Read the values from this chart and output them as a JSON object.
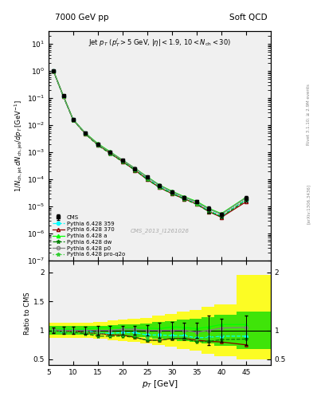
{
  "title_left": "7000 GeV pp",
  "title_right": "Soft QCD",
  "watermark": "CMS_2013_I1261026",
  "right_label1": "Rivet 3.1.10; ≥ 2.9M events",
  "right_label2": "[arXiv:1306.3436]",
  "background_color": "#f0f0f0",
  "pt_edges": [
    5,
    7,
    9,
    11,
    14,
    17,
    19,
    21,
    23.5,
    26,
    28.5,
    31,
    33.5,
    36,
    38.5,
    43,
    50
  ],
  "pt_centers": [
    6,
    8,
    10,
    12.5,
    15,
    17.5,
    20,
    22.5,
    25,
    27.5,
    30,
    32.5,
    35,
    37.5,
    40,
    45
  ],
  "cms_y": [
    1.0,
    0.12,
    0.016,
    0.005,
    0.002,
    0.001,
    0.0005,
    0.00025,
    0.00012,
    6e-05,
    3.5e-05,
    2.2e-05,
    1.5e-05,
    8e-06,
    5e-06,
    2e-05
  ],
  "cms_yerr": [
    0.05,
    0.008,
    0.001,
    0.0003,
    0.00015,
    8e-05,
    4e-05,
    2e-05,
    1e-05,
    8e-06,
    5e-06,
    3e-06,
    2e-06,
    2e-06,
    1e-06,
    5e-06
  ],
  "py359_y": [
    1.0,
    0.115,
    0.016,
    0.005,
    0.0019,
    0.00095,
    0.00048,
    0.00024,
    0.00011,
    5.5e-05,
    3.2e-05,
    2e-05,
    1.3e-05,
    7e-06,
    4.5e-06,
    1.8e-05
  ],
  "py370_y": [
    1.0,
    0.118,
    0.0158,
    0.0048,
    0.0019,
    0.00092,
    0.00046,
    0.00022,
    0.0001,
    5e-05,
    3e-05,
    1.9e-05,
    1.25e-05,
    6.5e-06,
    4e-06,
    1.5e-05
  ],
  "pya_y": [
    1.02,
    0.122,
    0.0162,
    0.0051,
    0.0021,
    0.00105,
    0.00052,
    0.00026,
    0.000125,
    6.2e-05,
    3.7e-05,
    2.3e-05,
    1.55e-05,
    8.5e-06,
    5.5e-06,
    2.2e-05
  ],
  "pydw_y": [
    1.0,
    0.116,
    0.0155,
    0.0047,
    0.0018,
    0.0009,
    0.00045,
    0.00022,
    0.0001,
    5e-05,
    3e-05,
    1.9e-05,
    1.2e-05,
    6.5e-06,
    4.2e-06,
    1.7e-05
  ],
  "pyp0_y": [
    1.01,
    0.12,
    0.016,
    0.005,
    0.002,
    0.001,
    0.00051,
    0.000255,
    0.00012,
    6e-05,
    3.5e-05,
    2.2e-05,
    1.45e-05,
    8e-06,
    5.2e-06,
    2.1e-05
  ],
  "pyproq2o_y": [
    1.0,
    0.117,
    0.0157,
    0.0048,
    0.0019,
    0.00093,
    0.000465,
    0.00023,
    0.000105,
    5.2e-05,
    3.1e-05,
    1.95e-05,
    1.28e-05,
    7e-06,
    4.6e-06,
    1.9e-05
  ],
  "ratio_py359": [
    1.0,
    0.96,
    1.0,
    1.0,
    0.95,
    0.95,
    0.96,
    0.96,
    0.92,
    0.92,
    0.91,
    0.91,
    0.87,
    0.88,
    0.9,
    0.9
  ],
  "ratio_py370": [
    1.0,
    0.98,
    0.99,
    0.96,
    0.95,
    0.92,
    0.92,
    0.88,
    0.83,
    0.83,
    0.86,
    0.86,
    0.83,
    0.81,
    0.8,
    0.75
  ],
  "ratio_pya": [
    1.02,
    1.02,
    1.01,
    1.02,
    1.05,
    1.05,
    1.04,
    1.04,
    1.04,
    1.03,
    1.06,
    1.05,
    1.03,
    1.06,
    1.1,
    1.1
  ],
  "ratio_pydw": [
    1.0,
    0.97,
    0.97,
    0.94,
    0.9,
    0.9,
    0.9,
    0.88,
    0.83,
    0.83,
    0.86,
    0.86,
    0.8,
    0.81,
    0.84,
    0.85
  ],
  "ratio_pyp0": [
    1.01,
    1.0,
    1.0,
    1.0,
    1.0,
    1.0,
    1.02,
    1.02,
    1.0,
    1.0,
    1.0,
    1.0,
    0.97,
    1.0,
    1.04,
    1.05
  ],
  "ratio_pyproq2o": [
    1.0,
    0.975,
    0.98,
    0.96,
    0.95,
    0.93,
    0.93,
    0.92,
    0.875,
    0.87,
    0.89,
    0.89,
    0.85,
    0.875,
    0.92,
    0.95
  ],
  "band_yellow_lo": [
    0.87,
    0.87,
    0.87,
    0.87,
    0.85,
    0.83,
    0.82,
    0.8,
    0.78,
    0.75,
    0.72,
    0.68,
    0.65,
    0.6,
    0.55,
    0.5
  ],
  "band_yellow_hi": [
    1.13,
    1.13,
    1.13,
    1.13,
    1.15,
    1.17,
    1.18,
    1.2,
    1.22,
    1.25,
    1.28,
    1.32,
    1.35,
    1.4,
    1.45,
    1.95
  ],
  "band_green_lo": [
    0.93,
    0.93,
    0.93,
    0.93,
    0.92,
    0.91,
    0.9,
    0.89,
    0.88,
    0.86,
    0.84,
    0.82,
    0.8,
    0.77,
    0.73,
    0.68
  ],
  "band_green_hi": [
    1.07,
    1.07,
    1.07,
    1.07,
    1.08,
    1.09,
    1.1,
    1.11,
    1.12,
    1.14,
    1.16,
    1.18,
    1.2,
    1.23,
    1.27,
    1.32
  ],
  "ylim_main": [
    1e-07,
    30
  ],
  "ylim_ratio": [
    0.4,
    2.2
  ],
  "xlim": [
    5,
    50
  ],
  "xticks": [
    5,
    10,
    15,
    20,
    25,
    30,
    35,
    40,
    45
  ]
}
